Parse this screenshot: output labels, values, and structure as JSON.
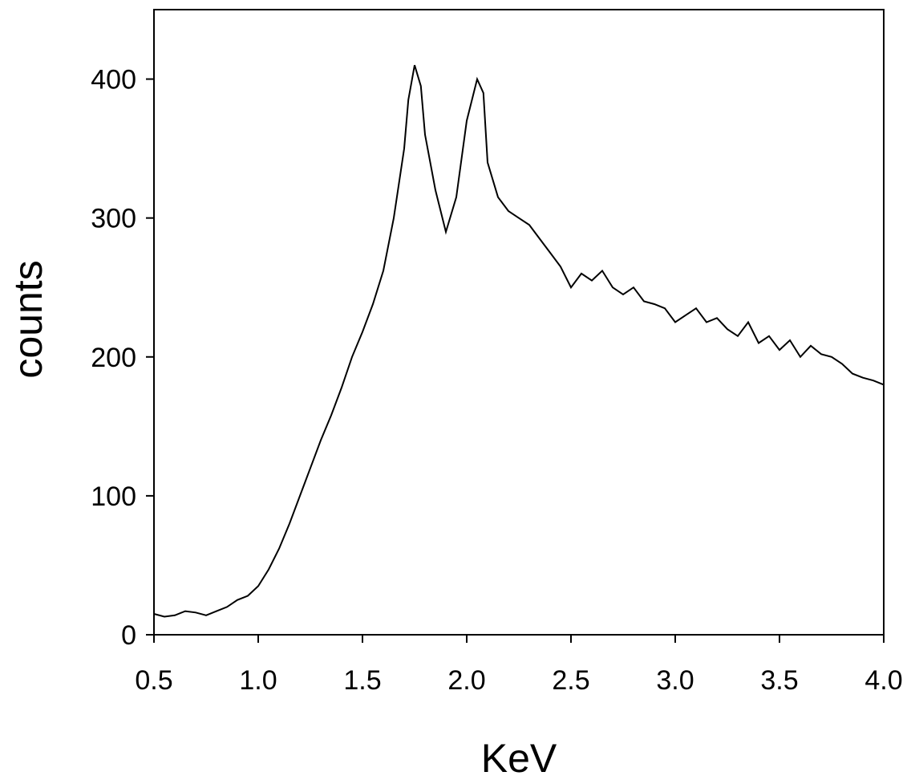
{
  "chart_data": {
    "type": "line",
    "title": "",
    "xlabel": "KeV",
    "ylabel": "counts",
    "xlim": [
      0.5,
      4.0
    ],
    "ylim": [
      0,
      450
    ],
    "xticks": [
      0.5,
      1.0,
      1.5,
      2.0,
      2.5,
      3.0,
      3.5,
      4.0
    ],
    "xtick_labels": [
      "0.5",
      "1.0",
      "1.5",
      "2.0",
      "2.5",
      "3.0",
      "3.5",
      "4.0"
    ],
    "yticks": [
      0,
      100,
      200,
      300,
      400
    ],
    "ytick_labels": [
      "0",
      "100",
      "200",
      "300",
      "400"
    ],
    "grid": false,
    "line_color": "#000000",
    "series": [
      {
        "x": [
          0.5,
          0.55,
          0.6,
          0.65,
          0.7,
          0.75,
          0.8,
          0.85,
          0.9,
          0.95,
          1.0,
          1.05,
          1.1,
          1.15,
          1.2,
          1.25,
          1.3,
          1.35,
          1.4,
          1.45,
          1.5,
          1.55,
          1.6,
          1.65,
          1.7,
          1.72,
          1.75,
          1.78,
          1.8,
          1.85,
          1.9,
          1.95,
          2.0,
          2.05,
          2.08,
          2.1,
          2.15,
          2.2,
          2.25,
          2.3,
          2.35,
          2.4,
          2.45,
          2.5,
          2.55,
          2.6,
          2.65,
          2.7,
          2.75,
          2.8,
          2.85,
          2.9,
          2.95,
          3.0,
          3.05,
          3.1,
          3.15,
          3.2,
          3.25,
          3.3,
          3.35,
          3.4,
          3.45,
          3.5,
          3.55,
          3.6,
          3.65,
          3.7,
          3.75,
          3.8,
          3.85,
          3.9,
          3.95,
          4.0
        ],
        "values": [
          15,
          13,
          14,
          17,
          16,
          14,
          17,
          20,
          25,
          28,
          35,
          47,
          62,
          80,
          100,
          120,
          140,
          158,
          178,
          200,
          218,
          238,
          262,
          300,
          350,
          385,
          410,
          395,
          360,
          320,
          290,
          315,
          370,
          400,
          390,
          340,
          315,
          305,
          300,
          295,
          285,
          275,
          265,
          250,
          260,
          255,
          262,
          250,
          245,
          250,
          240,
          238,
          235,
          225,
          230,
          235,
          225,
          228,
          220,
          215,
          225,
          210,
          215,
          205,
          212,
          200,
          208,
          202,
          200,
          195,
          188,
          185,
          183,
          180
        ]
      }
    ]
  }
}
